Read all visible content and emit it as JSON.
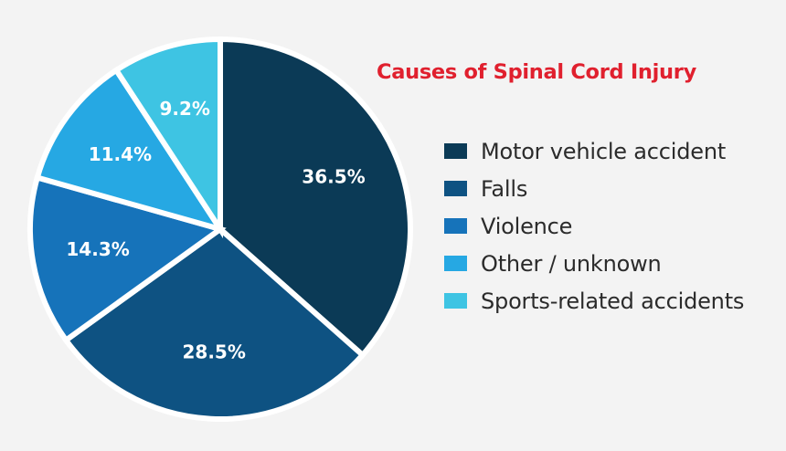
{
  "chart_data": {
    "type": "pie",
    "title": "Causes of Spinal Cord Injury",
    "categories": [
      "Motor vehicle accident",
      "Falls",
      "Violence",
      "Other / unknown",
      "Sports-related accidents"
    ],
    "values": [
      36.5,
      28.5,
      14.3,
      11.4,
      9.2
    ],
    "value_labels": [
      "36.5%",
      "28.5%",
      "14.3%",
      "11.4%",
      "9.2%"
    ],
    "colors": [
      "#0b3a56",
      "#0e5282",
      "#1673ba",
      "#26a8e3",
      "#3ec4e3"
    ],
    "start": "12 o'clock",
    "direction": "clockwise",
    "legend_placement": "right"
  }
}
